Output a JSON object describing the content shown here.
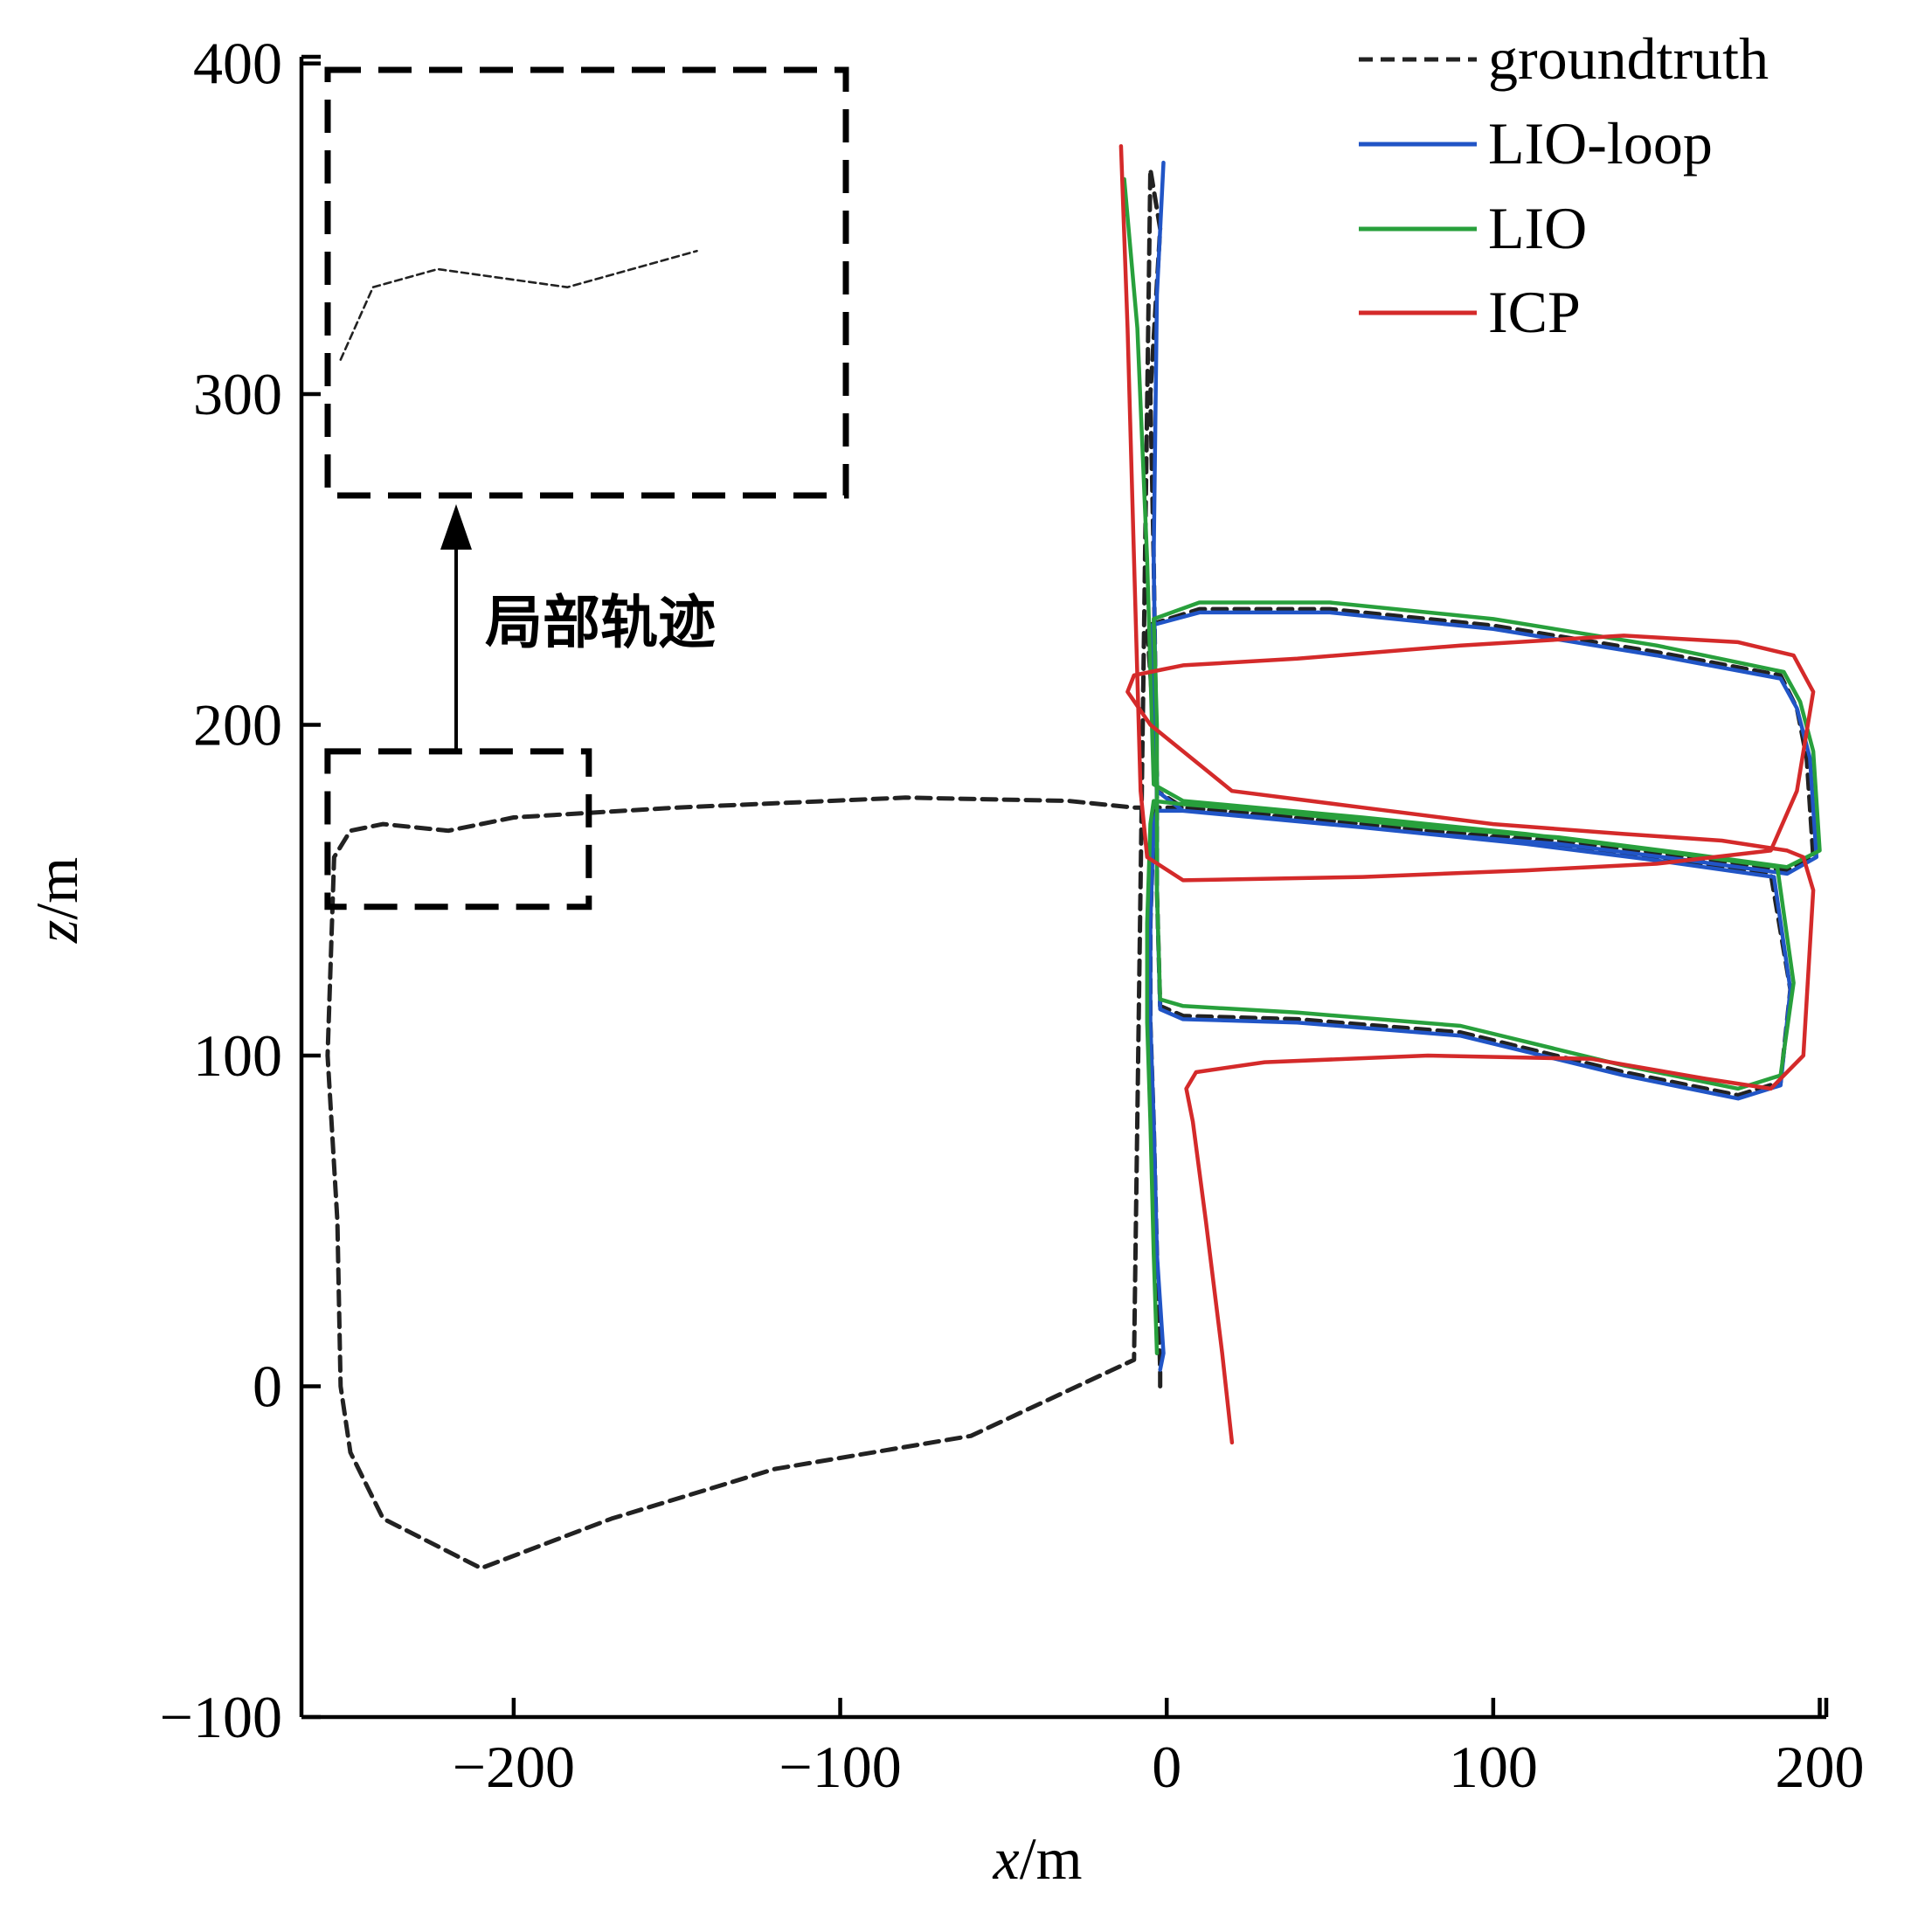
{
  "chart_data": {
    "type": "line",
    "xlabel": "x/m",
    "ylabel": "z/m",
    "xlabel_var": "x",
    "xlabel_unit": "/m",
    "ylabel_var": "z",
    "ylabel_unit": "/m",
    "xlim": [
      -265,
      202
    ],
    "ylim": [
      -100,
      402
    ],
    "xticks": [
      -200,
      -100,
      0,
      100,
      200
    ],
    "yticks": [
      -100,
      0,
      100,
      200,
      300,
      400
    ],
    "xtick_labels": [
      "−200",
      "−100",
      "0",
      "100",
      "200"
    ],
    "ytick_labels": [
      "−100",
      "0",
      "100",
      "200",
      "300",
      "400"
    ],
    "grid": false,
    "legend_position": "top-right",
    "annotation": {
      "text": "局部轨迹",
      "region_x": [
        -257,
        -177
      ],
      "region_z": [
        145,
        192
      ]
    },
    "inset": {
      "description_region": "zoomed local trajectory",
      "region_x": [
        -257,
        -177
      ],
      "region_z": [
        145,
        192
      ]
    },
    "series": [
      {
        "name": "groundtruth",
        "color": "#222222",
        "dash": true,
        "x": [
          -2,
          -2,
          -3,
          -4,
          -5,
          -5,
          -4,
          -3,
          5,
          30,
          80,
          120,
          160,
          190,
          198,
          196,
          193,
          188,
          150,
          100,
          50,
          10,
          -6,
          -4,
          -3,
          -3,
          -2,
          5,
          40,
          90,
          140,
          175,
          188,
          191,
          185,
          150,
          110,
          60,
          5,
          -3,
          -4,
          -5,
          -2,
          -5,
          -10,
          -60,
          -120,
          -170,
          -210,
          -240,
          -250,
          -253,
          -254,
          -257,
          -255,
          -250,
          -240,
          -220,
          -200,
          -150,
          -80,
          -30,
          -10,
          -10,
          -9,
          -8
        ],
        "z": [
          0,
          5,
          40,
          80,
          110,
          140,
          170,
          175,
          175,
          173,
          168,
          165,
          160,
          156,
          160,
          190,
          205,
          215,
          222,
          230,
          235,
          235,
          230,
          200,
          185,
          150,
          115,
          112,
          111,
          107,
          95,
          88,
          92,
          120,
          155,
          160,
          165,
          170,
          175,
          180,
          250,
          300,
          350,
          368,
          8,
          -15,
          -25,
          -40,
          -55,
          -40,
          -20,
          0,
          50,
          100,
          160,
          168,
          170,
          168,
          172,
          175,
          178,
          177,
          175,
          175,
          175,
          175
        ]
      },
      {
        "name": "LIO-loop",
        "color": "#2155c6",
        "dash": false,
        "x": [
          -2,
          -1,
          -3,
          -4,
          -5,
          -5,
          -4,
          -3,
          5,
          30,
          80,
          120,
          160,
          190,
          199,
          197,
          193,
          188,
          150,
          100,
          50,
          10,
          -5,
          -4,
          -3,
          -3,
          -2,
          5,
          40,
          90,
          140,
          175,
          188,
          191,
          186,
          150,
          110,
          60,
          5,
          -3,
          -4,
          -3,
          -1
        ],
        "z": [
          5,
          10,
          40,
          80,
          110,
          140,
          170,
          174,
          174,
          172,
          167,
          164,
          159,
          155,
          160,
          190,
          205,
          214,
          221,
          229,
          234,
          234,
          230,
          200,
          185,
          150,
          114,
          111,
          110,
          106,
          94,
          87,
          91,
          120,
          154,
          159,
          164,
          169,
          174,
          180,
          250,
          330,
          370
        ]
      },
      {
        "name": "LIO",
        "color": "#28a03c",
        "dash": false,
        "x": [
          -3,
          -4,
          -5,
          -6,
          -6,
          -5,
          -4,
          5,
          30,
          80,
          120,
          160,
          190,
          200,
          198,
          194,
          189,
          150,
          100,
          50,
          10,
          -4,
          -3,
          -3,
          -3,
          -2,
          5,
          40,
          90,
          140,
          175,
          188,
          192,
          187,
          150,
          110,
          60,
          5,
          -4,
          -6,
          -9,
          -13
        ],
        "z": [
          10,
          40,
          80,
          110,
          140,
          170,
          177,
          176,
          174,
          169,
          166,
          161,
          157,
          162,
          192,
          207,
          216,
          224,
          232,
          237,
          237,
          232,
          200,
          185,
          150,
          117,
          115,
          113,
          109,
          97,
          90,
          94,
          122,
          157,
          162,
          167,
          172,
          177,
          182,
          250,
          320,
          365
        ]
      },
      {
        "name": "ICP",
        "color": "#d42a2a",
        "dash": false,
        "x": [
          20,
          17,
          12,
          8,
          6,
          9,
          30,
          80,
          130,
          165,
          185,
          195,
          198,
          195,
          190,
          170,
          140,
          100,
          60,
          20,
          -5,
          -12,
          -10,
          -5,
          5,
          40,
          90,
          140,
          175,
          192,
          198,
          193,
          185,
          150,
          110,
          60,
          5,
          -6,
          -8,
          -10,
          -12,
          -14
        ],
        "z": [
          -17,
          10,
          50,
          80,
          90,
          95,
          98,
          100,
          99,
          93,
          90,
          100,
          150,
          160,
          162,
          165,
          167,
          170,
          175,
          180,
          200,
          210,
          215,
          216,
          218,
          220,
          224,
          227,
          225,
          221,
          210,
          180,
          162,
          158,
          156,
          154,
          153,
          160,
          180,
          250,
          320,
          375
        ]
      }
    ]
  }
}
